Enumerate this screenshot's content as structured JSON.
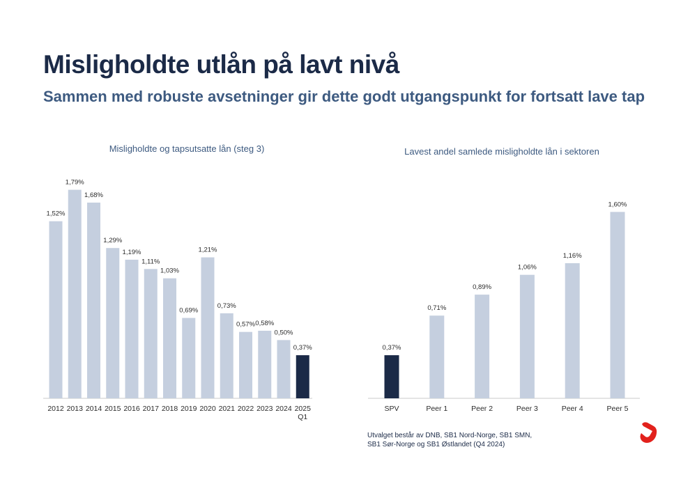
{
  "header": {
    "title": "Misligholdte utlån på lavt nivå",
    "subtitle": "Sammen med robuste avsetninger gir dette godt utgangspunkt for fortsatt lave tap"
  },
  "colors": {
    "bar": "#c5cfdf",
    "highlight": "#1b2a47",
    "label": "#2b2b2b",
    "axis": "#c8c8c8",
    "logo": "#e2211c"
  },
  "chart_data": [
    {
      "type": "bar",
      "title": "Misligholdte og tapsutsatte lån (steg 3)",
      "categories": [
        "2012",
        "2013",
        "2014",
        "2015",
        "2016",
        "2017",
        "2018",
        "2019",
        "2020",
        "2021",
        "2022",
        "2023",
        "2024",
        "2025\nQ1"
      ],
      "values": [
        1.52,
        1.79,
        1.68,
        1.29,
        1.19,
        1.11,
        1.03,
        0.69,
        1.21,
        0.73,
        0.57,
        0.58,
        0.5,
        0.37
      ],
      "value_labels": [
        "1,52%",
        "1,79%",
        "1,68%",
        "1,29%",
        "1,19%",
        "1,11%",
        "1,03%",
        "0,69%",
        "1,21%",
        "0,73%",
        "0,57%",
        "0,58%",
        "0,50%",
        "0,37%"
      ],
      "highlight": [
        "2025\nQ1"
      ],
      "ylim": [
        0,
        2.0
      ],
      "grid": false
    },
    {
      "type": "bar",
      "title": "Lavest andel samlede misligholdte lån i sektoren",
      "categories": [
        "SPV",
        "Peer 1",
        "Peer 2",
        "Peer 3",
        "Peer 4",
        "Peer 5"
      ],
      "values": [
        0.37,
        0.71,
        0.89,
        1.06,
        1.16,
        1.6
      ],
      "value_labels": [
        "0,37%",
        "0,71%",
        "0,89%",
        "1,06%",
        "1,16%",
        "1,60%"
      ],
      "highlight": [
        "SPV"
      ],
      "ylim": [
        0,
        2.0
      ],
      "grid": false
    }
  ],
  "footnote": {
    "line1": "Utvalget består av DNB, SB1 Nord-Norge, SB1 SMN,",
    "line2": "SB1 Sør-Norge og SB1 Østlandet (Q4 2024)"
  }
}
